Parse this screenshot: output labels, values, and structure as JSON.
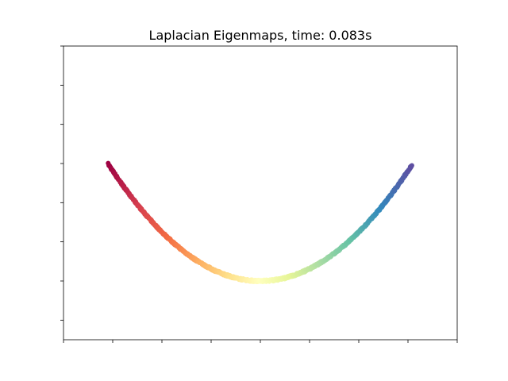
{
  "chart_data": {
    "type": "scatter",
    "title": "Laplacian Eigenmaps, time: 0.083s",
    "xlabel": "",
    "ylabel": "",
    "xlim": [
      -1.0,
      1.0
    ],
    "ylim": [
      -0.3,
      1.2
    ],
    "x_tick_labels_shown": false,
    "y_tick_labels_shown": false,
    "grid": false,
    "colormap": "Spectral",
    "colormap_stops": [
      "#9e0142",
      "#d53e4f",
      "#f46d43",
      "#fdae61",
      "#fee08b",
      "#ffffbf",
      "#e6f598",
      "#abdda4",
      "#66c2a5",
      "#3288bd",
      "#5e4fa2"
    ],
    "n_points": 1000,
    "curve": "parabola y = x^2",
    "x_range": [
      -0.77,
      0.77
    ],
    "marker_size": 6,
    "axis_color": "#000000"
  }
}
